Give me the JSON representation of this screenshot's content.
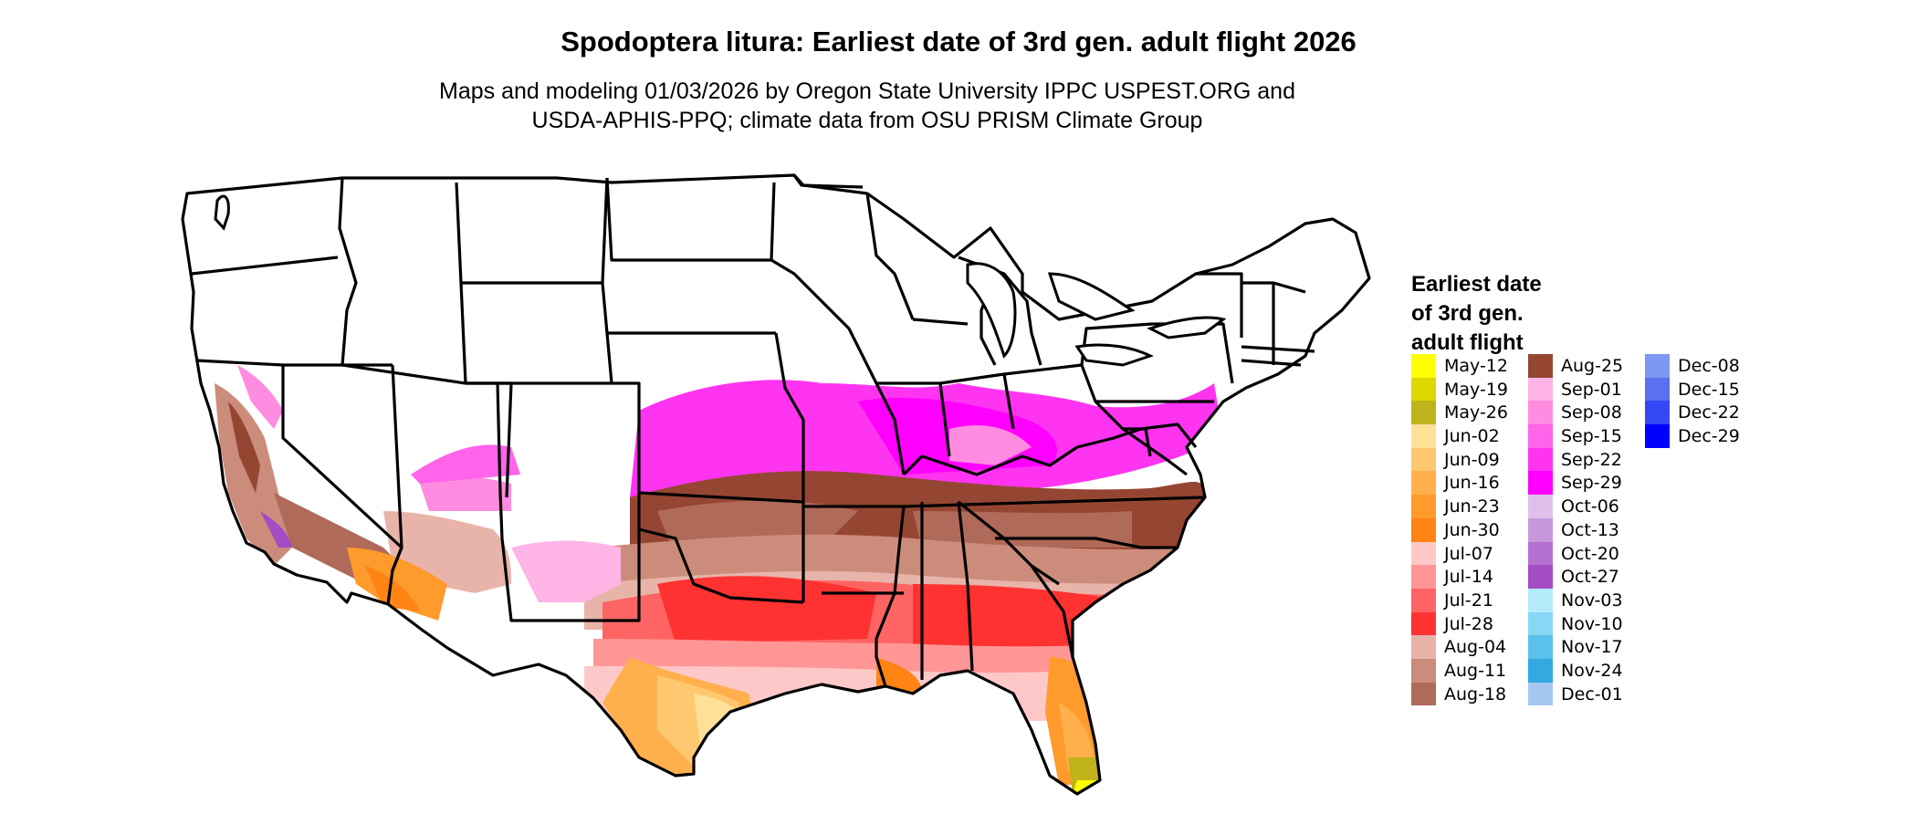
{
  "title": "Spodoptera litura: Earliest date of 3rd gen. adult flight 2026",
  "subtitle_line1": "Maps and modeling 01/03/2026 by Oregon State University IPPC USPEST.ORG and",
  "subtitle_line2": "USDA-APHIS-PPQ; climate data from OSU PRISM Climate Group",
  "legend": {
    "title_line1": "Earliest date",
    "title_line2": "of 3rd gen.",
    "title_line3": "adult flight",
    "items": [
      {
        "label": "May-12",
        "color": "#ffff00"
      },
      {
        "label": "May-19",
        "color": "#dcd800"
      },
      {
        "label": "May-26",
        "color": "#bfb21a"
      },
      {
        "label": "Jun-02",
        "color": "#ffe096"
      },
      {
        "label": "Jun-09",
        "color": "#ffc870"
      },
      {
        "label": "Jun-16",
        "color": "#ffb04c"
      },
      {
        "label": "Jun-23",
        "color": "#ff9a2c"
      },
      {
        "label": "Jun-30",
        "color": "#ff8414"
      },
      {
        "label": "Jul-07",
        "color": "#ffc8c8"
      },
      {
        "label": "Jul-14",
        "color": "#ff9696"
      },
      {
        "label": "Jul-21",
        "color": "#ff6464"
      },
      {
        "label": "Jul-28",
        "color": "#ff3232"
      },
      {
        "label": "Aug-04",
        "color": "#e8b4aa"
      },
      {
        "label": "Aug-11",
        "color": "#cc8c7c"
      },
      {
        "label": "Aug-18",
        "color": "#b06a5a"
      },
      {
        "label": "Aug-25",
        "color": "#954632"
      },
      {
        "label": "Sep-01",
        "color": "#ffb4e6"
      },
      {
        "label": "Sep-08",
        "color": "#ff8ce0"
      },
      {
        "label": "Sep-15",
        "color": "#ff64ea"
      },
      {
        "label": "Sep-22",
        "color": "#ff34f0"
      },
      {
        "label": "Sep-29",
        "color": "#ff00ff"
      },
      {
        "label": "Oct-06",
        "color": "#e0c0ea"
      },
      {
        "label": "Oct-13",
        "color": "#c898dc"
      },
      {
        "label": "Oct-20",
        "color": "#b670d0"
      },
      {
        "label": "Oct-27",
        "color": "#a44cc4"
      },
      {
        "label": "Nov-03",
        "color": "#b4ecfc"
      },
      {
        "label": "Nov-10",
        "color": "#86d8f6"
      },
      {
        "label": "Nov-17",
        "color": "#5ac0ec"
      },
      {
        "label": "Nov-24",
        "color": "#34a8e0"
      },
      {
        "label": "Dec-01",
        "color": "#a6c8f0"
      },
      {
        "label": "Dec-08",
        "color": "#7c98f0"
      },
      {
        "label": "Dec-15",
        "color": "#5a70f0"
      },
      {
        "label": "Dec-22",
        "color": "#3448f6"
      },
      {
        "label": "Dec-29",
        "color": "#0000ff"
      }
    ]
  }
}
